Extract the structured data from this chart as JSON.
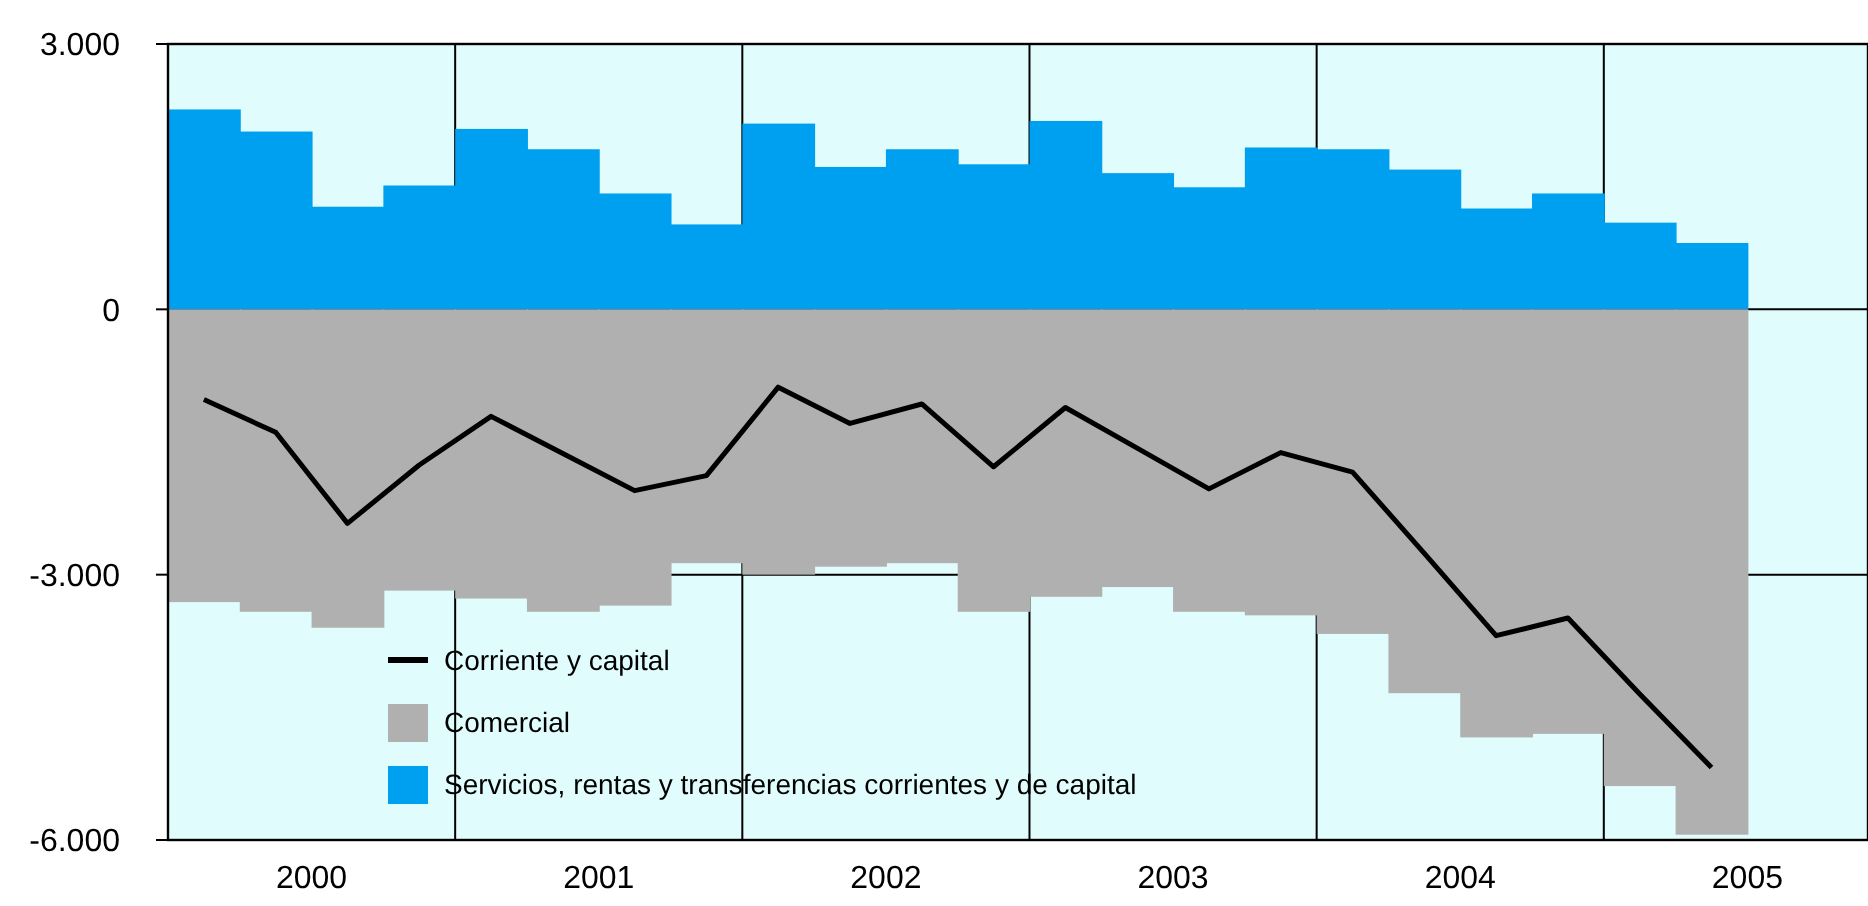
{
  "chart_data": {
    "type": "bar",
    "x": [
      2000.125,
      2000.375,
      2000.625,
      2000.875,
      2001.125,
      2001.375,
      2001.625,
      2001.875,
      2002.125,
      2002.375,
      2002.625,
      2002.875,
      2003.125,
      2003.375,
      2003.625,
      2003.875,
      2004.125,
      2004.375,
      2004.625,
      2004.875,
      2005.125,
      2005.375
    ],
    "series": [
      {
        "name": "Servicios, rentas y transferencias corrientes y de capital",
        "color": "#00a0f0",
        "values": [
          2260,
          2010,
          1160,
          1400,
          2040,
          1810,
          1310,
          960,
          2100,
          1610,
          1810,
          1640,
          2130,
          1540,
          1380,
          1830,
          1810,
          1580,
          1140,
          1310,
          980,
          750
        ]
      },
      {
        "name": "Comercial",
        "color": "#b0b0b0",
        "values": [
          -3310,
          -3420,
          -3600,
          -3180,
          -3270,
          -3420,
          -3350,
          -2870,
          -3000,
          -2910,
          -2870,
          -3420,
          -3250,
          -3140,
          -3420,
          -3460,
          -3670,
          -4340,
          -4840,
          -4800,
          -5390,
          -5940
        ]
      },
      {
        "name": "Corriente y capital",
        "type": "line",
        "color": "#000000",
        "values": [
          -1020,
          -1390,
          -2420,
          -1760,
          -1210,
          -1630,
          -2050,
          -1880,
          -880,
          -1290,
          -1070,
          -1780,
          -1110,
          -1570,
          -2030,
          -1620,
          -1840,
          -2760,
          -3690,
          -3490,
          -4350,
          -5180
        ]
      }
    ],
    "xlim": [
      2000,
      2005.92
    ],
    "xticks": [
      {
        "value": 2000.5,
        "label": "2000"
      },
      {
        "value": 2001,
        "label": null
      },
      {
        "value": 2001.5,
        "label": "2001"
      },
      {
        "value": 2002,
        "label": null
      },
      {
        "value": 2002.5,
        "label": "2002"
      },
      {
        "value": 2003,
        "label": null
      },
      {
        "value": 2003.5,
        "label": "2003"
      },
      {
        "value": 2004,
        "label": null
      },
      {
        "value": 2004.5,
        "label": "2004"
      },
      {
        "value": 2005,
        "label": null
      },
      {
        "value": 2005.5,
        "label": "2005"
      }
    ],
    "ylim": [
      -6000,
      3000
    ],
    "yticks": [
      {
        "value": -6000,
        "label": "-6.000"
      },
      {
        "value": -3000,
        "label": "-3.000"
      },
      {
        "value": 0,
        "label": "0"
      },
      {
        "value": 3000,
        "label": "3.000"
      }
    ],
    "stacked": true,
    "grid": true,
    "legend": "bottom left"
  }
}
